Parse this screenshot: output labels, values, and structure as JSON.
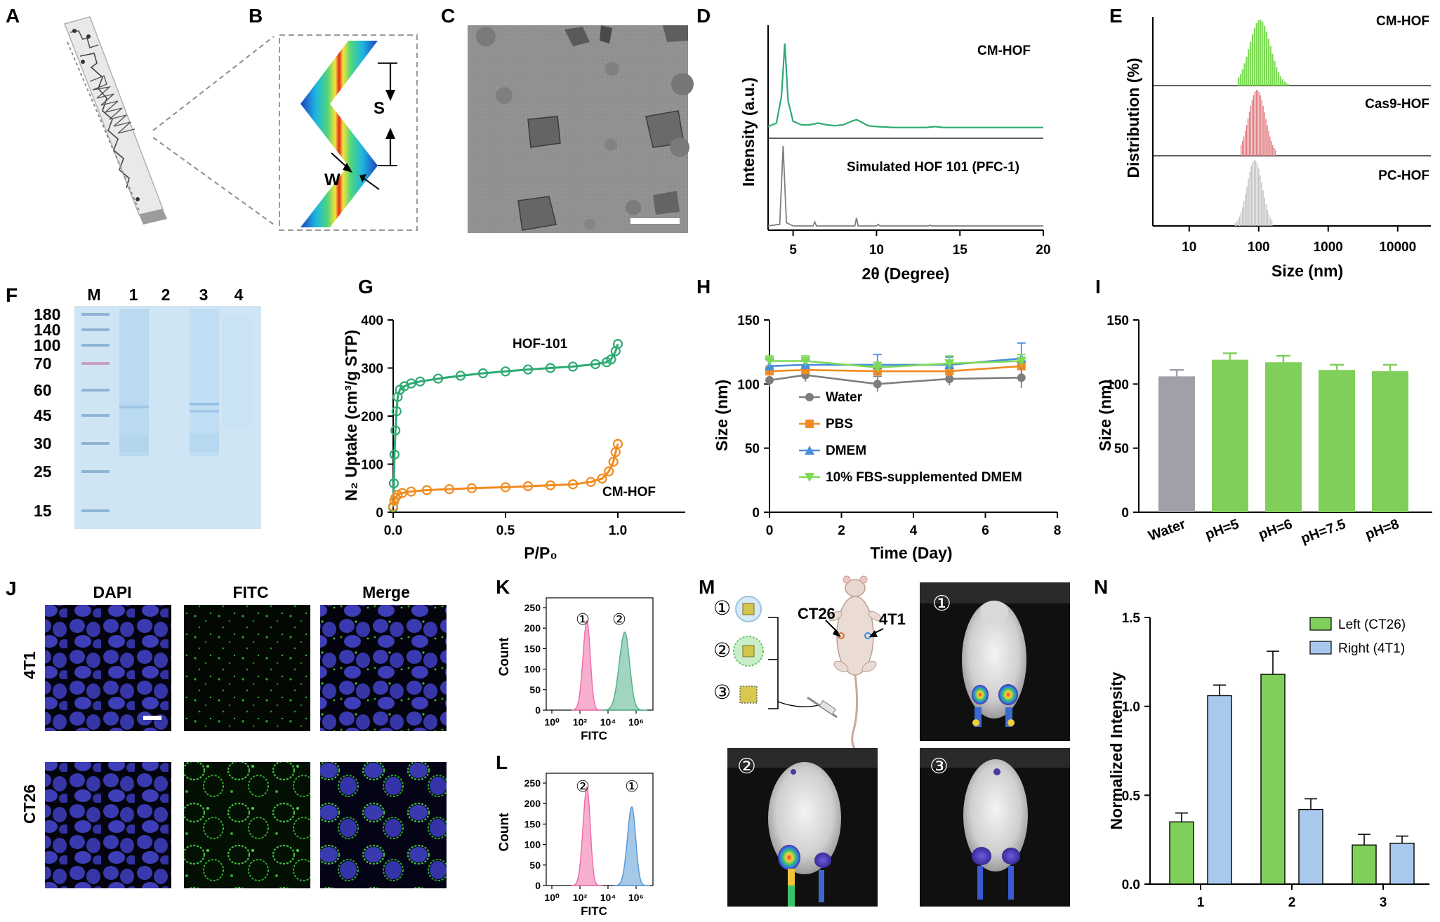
{
  "panels": {
    "A": "A",
    "B": "B",
    "C": "C",
    "D": "D",
    "E": "E",
    "F": "F",
    "G": "G",
    "H": "H",
    "I": "I",
    "J": "J",
    "K": "K",
    "L": "L",
    "M": "M",
    "N": "N"
  },
  "labels": {
    "b_s": "S",
    "b_w": "W",
    "j_dapi": "DAPI",
    "j_fitc": "FITC",
    "j_merge": "Merge",
    "j_4t1": "4T1",
    "j_ct26": "CT26",
    "m_ct26": "CT26",
    "m_4t1": "4T1",
    "circ1": "①",
    "circ2": "②",
    "circ3": "③"
  },
  "colors": {
    "green": "#2daa72",
    "orange": "#f28b1f",
    "grey_line": "#7d7d7d",
    "blue_line": "#4a90d9",
    "lime": "#7ed957",
    "bar_green": "#7fcf5a",
    "bar_grey": "#a0a0a8",
    "bar_blue": "#a8c8ee",
    "bar_red": "#e0797f",
    "pink": "#f06ea9",
    "flow_green": "#54b28a",
    "flow_blue": "#5a9bd6",
    "gel_bg": "#cfe5f3"
  },
  "chart_data": [
    {
      "id": "D",
      "type": "line",
      "xlabel": "2θ (Degree)",
      "ylabel": "Intensity (a.u.)",
      "xticks": [
        5,
        10,
        15,
        20
      ],
      "xlim": [
        3.5,
        20
      ],
      "series": [
        {
          "name": "CM-HOF",
          "x": [
            3.5,
            4.0,
            4.3,
            4.5,
            4.7,
            5.0,
            5.5,
            6.0,
            6.5,
            7.0,
            7.5,
            8.0,
            8.5,
            8.8,
            9.1,
            9.5,
            10,
            11,
            12,
            13,
            13.5,
            14,
            15,
            16,
            17,
            18,
            19,
            20
          ],
          "y": [
            6,
            10,
            40,
            100,
            35,
            12,
            8,
            8,
            10,
            8,
            7,
            8,
            12,
            14,
            11,
            7,
            6,
            5,
            5,
            5,
            6,
            5,
            5,
            5,
            5,
            5,
            5,
            5
          ]
        },
        {
          "name": "Simulated HOF 101 (PFC-1)",
          "x": [
            3.5,
            4.2,
            4.4,
            4.6,
            5.0,
            6.2,
            6.3,
            6.4,
            7.0,
            8.7,
            8.8,
            8.9,
            9.5,
            10.0,
            10.1,
            10.2,
            11,
            13.1,
            13.2,
            13.3,
            14,
            20
          ],
          "y": [
            0,
            2,
            100,
            4,
            0,
            0,
            5,
            0,
            0,
            0,
            10,
            0,
            0,
            0,
            2,
            0,
            0,
            0,
            1,
            0,
            0,
            0
          ]
        }
      ]
    },
    {
      "id": "E",
      "type": "bar",
      "xlabel": "Size (nm)",
      "ylabel": "Distribution (%)",
      "xscale": "log",
      "xticks": [
        10,
        100,
        1000,
        10000
      ],
      "xlim": [
        3,
        30000
      ],
      "series": [
        {
          "name": "CM-HOF",
          "mean": 105,
          "sigma_log": 0.15,
          "range": [
            50,
            280
          ]
        },
        {
          "name": "Cas9-HOF",
          "mean": 95,
          "sigma_log": 0.12,
          "range": [
            55,
            180
          ]
        },
        {
          "name": "PC-HOF",
          "mean": 88,
          "sigma_log": 0.11,
          "range": [
            45,
            160
          ]
        }
      ]
    },
    {
      "id": "G",
      "type": "line",
      "xlabel": "P/P₀",
      "ylabel": "N₂ Uptake (cm³/g STP)",
      "xlim": [
        0,
        1.3
      ],
      "ylim": [
        0,
        400
      ],
      "xticks": [
        0.0,
        0.5,
        1.0
      ],
      "yticks": [
        0,
        100,
        200,
        300,
        400
      ],
      "series": [
        {
          "name": "HOF-101",
          "x": [
            0.0,
            0.003,
            0.006,
            0.01,
            0.015,
            0.02,
            0.03,
            0.05,
            0.08,
            0.12,
            0.2,
            0.3,
            0.4,
            0.5,
            0.6,
            0.7,
            0.8,
            0.9,
            0.95,
            0.97,
            0.99,
            1.0
          ],
          "y": [
            10,
            60,
            120,
            170,
            210,
            240,
            255,
            262,
            268,
            272,
            278,
            284,
            289,
            293,
            297,
            300,
            303,
            308,
            312,
            318,
            335,
            350
          ]
        },
        {
          "name": "CM-HOF",
          "x": [
            0.0,
            0.005,
            0.01,
            0.02,
            0.04,
            0.08,
            0.15,
            0.25,
            0.35,
            0.5,
            0.6,
            0.7,
            0.8,
            0.88,
            0.93,
            0.96,
            0.98,
            0.99,
            1.0
          ],
          "y": [
            12,
            24,
            30,
            36,
            40,
            43,
            46,
            48,
            50,
            52,
            54,
            56,
            58,
            63,
            70,
            85,
            105,
            125,
            142
          ]
        }
      ]
    },
    {
      "id": "H",
      "type": "line",
      "xlabel": "Time (Day)",
      "ylabel": "Size (nm)",
      "xlim": [
        0,
        8
      ],
      "ylim": [
        0,
        150
      ],
      "xticks": [
        0,
        2,
        4,
        6,
        8
      ],
      "yticks": [
        0,
        50,
        100,
        150
      ],
      "series": [
        {
          "name": "Water",
          "x": [
            0,
            1,
            3,
            5,
            7
          ],
          "y": [
            103,
            107,
            100,
            104,
            105
          ],
          "err": [
            5,
            5,
            6,
            5,
            8
          ]
        },
        {
          "name": "PBS",
          "x": [
            0,
            1,
            3,
            5,
            7
          ],
          "y": [
            110,
            111,
            110,
            110,
            114
          ],
          "err": [
            4,
            4,
            5,
            5,
            6
          ]
        },
        {
          "name": "DMEM",
          "x": [
            0,
            1,
            3,
            5,
            7
          ],
          "y": [
            114,
            115,
            115,
            115,
            120
          ],
          "err": [
            5,
            4,
            8,
            6,
            12
          ]
        },
        {
          "name": "10% FBS-supplemented DMEM",
          "x": [
            0,
            1,
            3,
            5,
            7
          ],
          "y": [
            118,
            118,
            113,
            116,
            118
          ],
          "err": [
            4,
            4,
            4,
            6,
            5
          ]
        }
      ]
    },
    {
      "id": "I",
      "type": "bar",
      "ylabel": "Size (nm)",
      "ylim": [
        0,
        150
      ],
      "yticks": [
        0,
        50,
        100,
        150
      ],
      "categories": [
        "Water",
        "pH=5",
        "pH=6",
        "pH=7.5",
        "pH=8"
      ],
      "values": [
        106,
        119,
        117,
        111,
        110
      ],
      "errors": [
        5,
        5,
        5,
        4,
        5
      ]
    },
    {
      "id": "K",
      "type": "area",
      "xlabel": "FITC",
      "ylabel": "Count",
      "xscale": "log",
      "xticks_labels": [
        "10⁰",
        "10²",
        "10⁴",
        "10⁶"
      ],
      "ylim": [
        0,
        250
      ],
      "yticks": [
        0,
        50,
        100,
        150,
        200,
        250
      ],
      "series": [
        {
          "name": "①",
          "peak_log10": 2.5,
          "width": 0.28,
          "height": 218
        },
        {
          "name": "②",
          "peak_log10": 5.2,
          "width": 0.4,
          "height": 190
        }
      ]
    },
    {
      "id": "L",
      "type": "area",
      "xlabel": "FITC",
      "ylabel": "Count",
      "xscale": "log",
      "xticks_labels": [
        "10⁰",
        "10²",
        "10⁴",
        "10⁶"
      ],
      "ylim": [
        0,
        250
      ],
      "yticks": [
        0,
        50,
        100,
        150,
        200,
        250
      ],
      "series": [
        {
          "name": "②",
          "peak_log10": 2.5,
          "width": 0.28,
          "height": 240
        },
        {
          "name": "①",
          "peak_log10": 5.7,
          "width": 0.32,
          "height": 192
        }
      ]
    },
    {
      "id": "N",
      "type": "bar",
      "ylabel": "Normalized Intensity",
      "ylim": [
        0,
        1.5
      ],
      "yticks": [
        0.0,
        0.5,
        1.0,
        1.5
      ],
      "categories": [
        "1",
        "2",
        "3"
      ],
      "series": [
        {
          "name": "Left (CT26)",
          "values": [
            0.35,
            1.18,
            0.22
          ],
          "errors": [
            0.05,
            0.13,
            0.06
          ]
        },
        {
          "name": "Right (4T1)",
          "values": [
            1.06,
            0.42,
            0.23
          ],
          "errors": [
            0.06,
            0.06,
            0.04
          ]
        }
      ]
    },
    {
      "id": "F",
      "type": "table",
      "lanes": [
        "M",
        "1",
        "2",
        "3",
        "4"
      ],
      "marker_kda": [
        "180",
        "140",
        "100",
        "70",
        "60",
        "45",
        "30",
        "25",
        "15"
      ]
    }
  ]
}
